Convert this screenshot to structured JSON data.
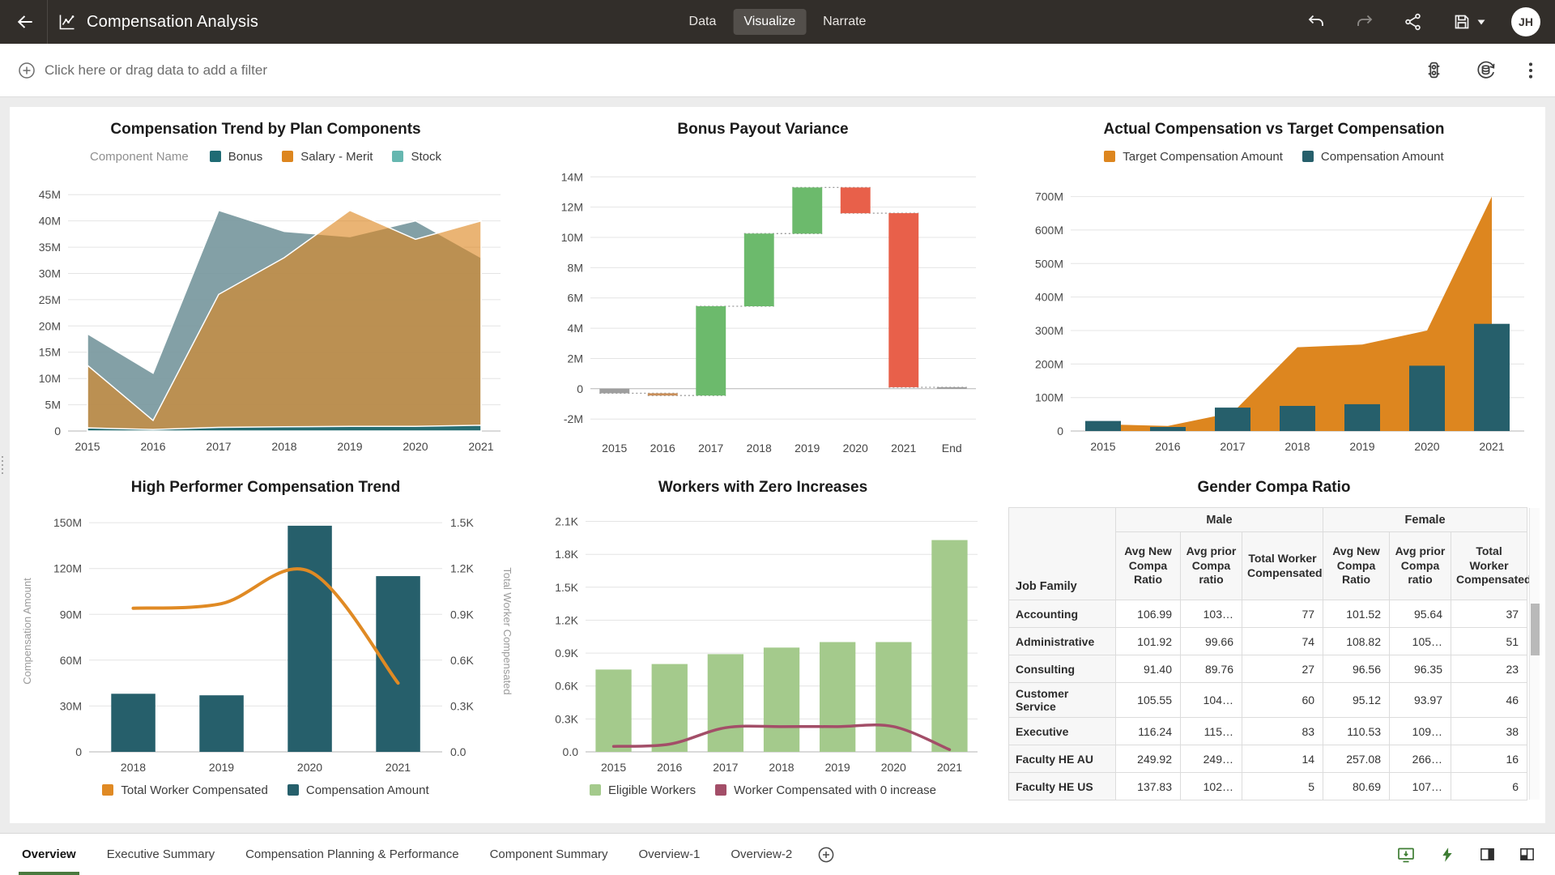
{
  "header": {
    "title": "Compensation Analysis",
    "mode_tabs": [
      {
        "label": "Data",
        "active": false
      },
      {
        "label": "Visualize",
        "active": true
      },
      {
        "label": "Narrate",
        "active": false
      }
    ],
    "avatar_initials": "JH"
  },
  "filter_bar": {
    "prompt": "Click here or drag data to add a filter"
  },
  "canvas_tabs": [
    {
      "label": "Overview",
      "active": true
    },
    {
      "label": "Executive Summary",
      "active": false
    },
    {
      "label": "Compensation Planning & Performance",
      "active": false
    },
    {
      "label": "Component Summary",
      "active": false
    },
    {
      "label": "Overview-1",
      "active": false
    },
    {
      "label": "Overview-2",
      "active": false
    }
  ],
  "colors": {
    "topbar_bg": "#322e2a",
    "teal": "#265f6b",
    "orange": "#dd861f",
    "light_teal": "#66b7b0",
    "waterfall_increase": "#6cba6c",
    "waterfall_decrease": "#e8604a",
    "waterfall_neutral": "#9e9e9e",
    "light_green": "#a4ca8c",
    "maroon": "#a34e68",
    "active_tab_underline": "#4a7a3f"
  },
  "chart_data": [
    {
      "id": "plan-components",
      "type": "area",
      "title": "Compensation Trend by Plan Components",
      "legend_title": "Component Name",
      "legend_position": "top",
      "unit": "M",
      "x": [
        "2015",
        "2016",
        "2017",
        "2018",
        "2019",
        "2020",
        "2021"
      ],
      "ylim": [
        0,
        47.5
      ],
      "yticks": [
        0,
        5,
        10,
        15,
        20,
        25,
        30,
        35,
        40,
        45
      ],
      "ytick_labels": [
        "0",
        "5M",
        "10M",
        "15M",
        "20M",
        "25M",
        "30M",
        "35M",
        "40M",
        "45M"
      ],
      "grid": true,
      "legend": [
        {
          "label": "Bonus",
          "color": "#1f6b74"
        },
        {
          "label": "Salary - Merit",
          "color": "#dd861f"
        },
        {
          "label": "Stock",
          "color": "#66b7b0"
        }
      ],
      "series": [
        {
          "name": "Stock",
          "fill": "rgba(120,152,158,0.92)",
          "values": [
            18.5,
            11,
            42,
            38,
            37,
            40,
            33
          ]
        },
        {
          "name": "Salary - Merit",
          "fill": "rgba(221,134,31,0.62)",
          "values": [
            12.5,
            2,
            26,
            33,
            42,
            36.5,
            40
          ]
        },
        {
          "name": "Bonus",
          "fill": "rgba(31,107,116,0.95)",
          "values": [
            0.6,
            0.3,
            0.7,
            0.8,
            0.9,
            0.9,
            1.1
          ]
        }
      ]
    },
    {
      "id": "bonus-payout-variance",
      "type": "waterfall",
      "title": "Bonus Payout Variance",
      "unit": "M",
      "x": [
        "2015",
        "2016",
        "2017",
        "2018",
        "2019",
        "2020",
        "2021",
        "End"
      ],
      "ylim": [
        -2.9,
        15.3
      ],
      "yticks": [
        -2,
        0,
        2,
        4,
        6,
        8,
        10,
        12,
        14
      ],
      "ytick_labels": [
        "-2M",
        "0",
        "2M",
        "4M",
        "6M",
        "8M",
        "10M",
        "12M",
        "14M"
      ],
      "steps": [
        {
          "x": "2015",
          "from": 0,
          "to": -0.3,
          "color": "#9e9e9e"
        },
        {
          "x": "2016",
          "from": -0.3,
          "to": -0.45,
          "color": "#c98f5a"
        },
        {
          "x": "2017",
          "from": -0.45,
          "to": 5.45,
          "color": "#6cba6c"
        },
        {
          "x": "2018",
          "from": 5.45,
          "to": 10.25,
          "color": "#6cba6c"
        },
        {
          "x": "2019",
          "from": 10.25,
          "to": 13.3,
          "color": "#6cba6c"
        },
        {
          "x": "2020",
          "from": 13.3,
          "to": 11.6,
          "color": "#e8604a"
        },
        {
          "x": "2021",
          "from": 11.6,
          "to": 0.1,
          "color": "#e8604a"
        },
        {
          "x": "End",
          "from": 0,
          "to": 0.1,
          "color": "#9e9e9e"
        }
      ]
    },
    {
      "id": "actual-vs-target",
      "type": "combo_area_bar",
      "title": "Actual Compensation vs Target Compensation",
      "legend_position": "top",
      "unit": "M",
      "x": [
        "2015",
        "2016",
        "2017",
        "2018",
        "2019",
        "2020",
        "2021"
      ],
      "ylim": [
        0,
        745
      ],
      "yticks": [
        0,
        100,
        200,
        300,
        400,
        500,
        600,
        700
      ],
      "ytick_labels": [
        "0",
        "100M",
        "200M",
        "300M",
        "400M",
        "500M",
        "600M",
        "700M"
      ],
      "legend": [
        {
          "label": "Target Compensation Amount",
          "color": "#dd861f"
        },
        {
          "label": "Compensation Amount",
          "color": "#265f6b"
        }
      ],
      "area": {
        "name": "Target Compensation Amount",
        "color": "#dd861f",
        "values": [
          20,
          15,
          55,
          250,
          258,
          300,
          700
        ]
      },
      "bars": {
        "name": "Compensation Amount",
        "color": "#265f6b",
        "values": [
          30,
          12,
          70,
          75,
          80,
          195,
          320
        ]
      }
    },
    {
      "id": "high-performer-trend",
      "type": "bar_line",
      "title": "High Performer Compensation Trend",
      "legend_position": "bottom",
      "x": [
        "2018",
        "2019",
        "2020",
        "2021"
      ],
      "ylabel_left": "Compensation Amount",
      "ylabel_right": "Total Worker Compensated",
      "ylim": [
        0,
        158
      ],
      "yticks": [
        0,
        30,
        60,
        90,
        120,
        150
      ],
      "ytick_labels": [
        "0",
        "30M",
        "60M",
        "90M",
        "120M",
        "150M"
      ],
      "y2lim": [
        0,
        1.58
      ],
      "y2ticks": [
        0,
        0.3,
        0.6,
        0.9,
        1.2,
        1.5
      ],
      "y2tick_labels": [
        "0.0",
        "0.3K",
        "0.6K",
        "0.9K",
        "1.2K",
        "1.5K"
      ],
      "bars": {
        "name": "Compensation Amount",
        "color": "#265f6b",
        "unit": "M",
        "values": [
          38,
          37,
          148,
          115
        ]
      },
      "line": {
        "name": "Total Worker Compensated",
        "color": "#e08a24",
        "unit": "K",
        "axis": "y2",
        "width": 4,
        "values": [
          0.94,
          0.97,
          1.18,
          0.45
        ]
      },
      "legend": [
        {
          "label": "Total Worker Compensated",
          "color": "#e08a24"
        },
        {
          "label": "Compensation Amount",
          "color": "#265f6b"
        }
      ]
    },
    {
      "id": "workers-zero-increases",
      "type": "bar_line",
      "title": "Workers with Zero Increases",
      "legend_position": "bottom",
      "x": [
        "2015",
        "2016",
        "2017",
        "2018",
        "2019",
        "2020",
        "2021"
      ],
      "ylim": [
        0,
        2.2
      ],
      "yticks": [
        0,
        0.3,
        0.6,
        0.9,
        1.2,
        1.5,
        1.8,
        2.1
      ],
      "ytick_labels": [
        "0.0",
        "0.3K",
        "0.6K",
        "0.9K",
        "1.2K",
        "1.5K",
        "1.8K",
        "2.1K"
      ],
      "bars": {
        "name": "Eligible Workers",
        "color": "#a4ca8c",
        "unit": "K",
        "values": [
          0.75,
          0.8,
          0.89,
          0.95,
          1.0,
          1.0,
          1.93
        ]
      },
      "line": {
        "name": "Worker Compensated with 0 increase",
        "color": "#a34e68",
        "unit": "K",
        "axis": "y",
        "width": 3.5,
        "values": [
          0.05,
          0.07,
          0.22,
          0.23,
          0.23,
          0.23,
          0.02
        ]
      },
      "legend": [
        {
          "label": "Eligible Workers",
          "color": "#a4ca8c"
        },
        {
          "label": "Worker Compensated with 0 increase",
          "color": "#a34e68"
        }
      ]
    },
    {
      "id": "gender-compa-ratio",
      "type": "table",
      "title": "Gender Compa Ratio",
      "row_header": "Job Family",
      "groups": [
        "Male",
        "Female"
      ],
      "sub_columns": [
        "Avg New Compa Ratio",
        "Avg prior Compa ratio",
        "Total Worker Compensated"
      ],
      "rows": [
        {
          "job_family": "Accounting",
          "values": [
            "106.99",
            "103…",
            "77",
            "101.52",
            "95.64",
            "37"
          ]
        },
        {
          "job_family": "Administrative",
          "values": [
            "101.92",
            "99.66",
            "74",
            "108.82",
            "105…",
            "51"
          ]
        },
        {
          "job_family": "Consulting",
          "values": [
            "91.40",
            "89.76",
            "27",
            "96.56",
            "96.35",
            "23"
          ]
        },
        {
          "job_family": "Customer Service",
          "values": [
            "105.55",
            "104…",
            "60",
            "95.12",
            "93.97",
            "46"
          ]
        },
        {
          "job_family": "Executive",
          "values": [
            "116.24",
            "115…",
            "83",
            "110.53",
            "109…",
            "38"
          ]
        },
        {
          "job_family": "Faculty HE AU",
          "values": [
            "249.92",
            "249…",
            "14",
            "257.08",
            "266…",
            "16"
          ]
        },
        {
          "job_family": "Faculty HE US",
          "values": [
            "137.83",
            "102…",
            "5",
            "80.69",
            "107…",
            "6"
          ]
        }
      ]
    }
  ]
}
